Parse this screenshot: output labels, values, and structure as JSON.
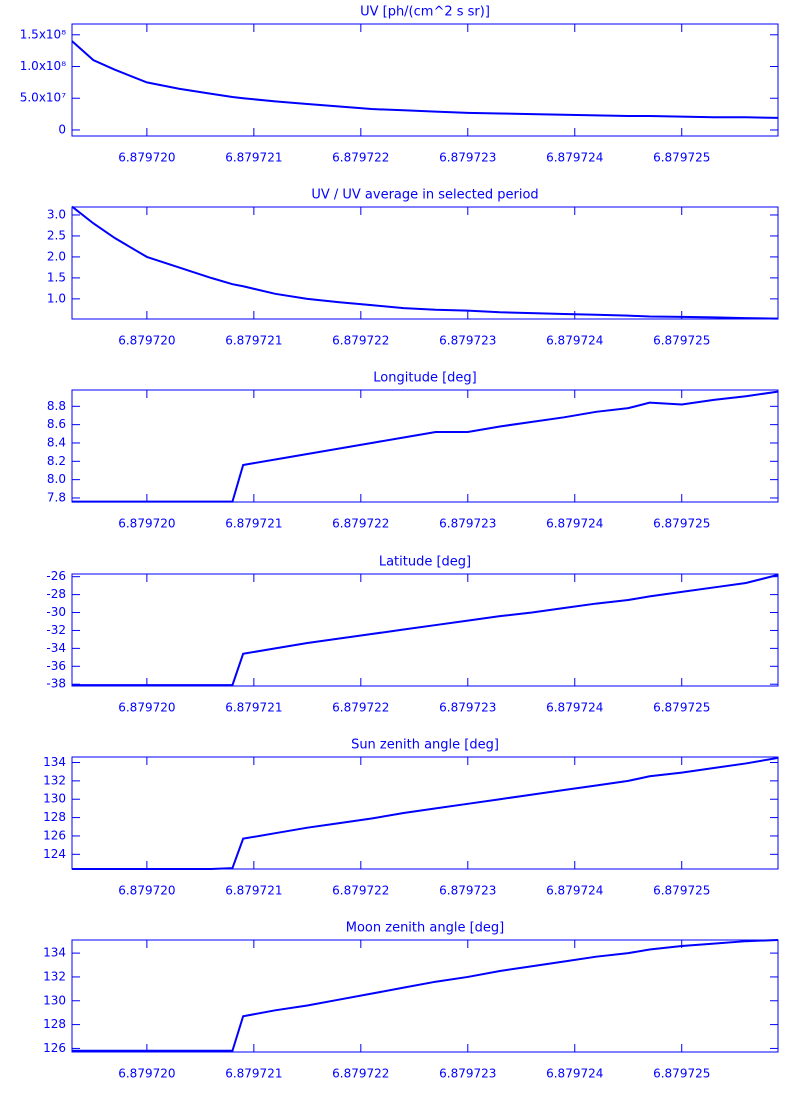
{
  "chart_data": [
    {
      "type": "line",
      "title": "UV [ph/(cm^2 s sr)]",
      "color": "#0000ff",
      "x": [
        6.8797193,
        6.8797195,
        6.8797197,
        6.87972,
        6.8797203,
        6.8797206,
        6.8797208,
        6.8797209,
        6.8797212,
        6.8797215,
        6.8797218,
        6.8797221,
        6.8797224,
        6.8797227,
        6.879723,
        6.8797233,
        6.8797236,
        6.8797239,
        6.8797242,
        6.8797245,
        6.8797247,
        6.879725,
        6.8797253,
        6.8797256,
        6.8797259
      ],
      "values": [
        140000000,
        110000000,
        95000000,
        75000000,
        65000000,
        57000000,
        52000000,
        50000000,
        45000000,
        41000000,
        37000000,
        33000000,
        31000000,
        29000000,
        27000000,
        26000000,
        25000000,
        24000000,
        23000000,
        22000000,
        22000000,
        21000000,
        20000000,
        20000000,
        19000000
      ],
      "xlim": [
        6.8797193,
        6.8797259
      ],
      "xticks": [
        {
          "value": 6.87972,
          "label": "6.879720"
        },
        6.879721,
        6.879722,
        6.879723,
        6.879724,
        6.879725
      ],
      "ylim": [
        -9500000,
        167000000
      ],
      "yticks": [
        0,
        {
          "value": 50000000,
          "label": "5.0x10⁷"
        },
        {
          "value": 100000000,
          "label": "1.0x10⁸"
        },
        {
          "value": 150000000,
          "label": "1.5x10⁸"
        }
      ]
    },
    {
      "type": "line",
      "title": "UV / UV average in selected period",
      "color": "#0000ff",
      "x": [
        6.8797193,
        6.8797195,
        6.8797197,
        6.87972,
        6.8797203,
        6.8797206,
        6.8797208,
        6.8797209,
        6.8797212,
        6.8797215,
        6.8797218,
        6.8797221,
        6.8797224,
        6.8797227,
        6.879723,
        6.8797233,
        6.8797236,
        6.8797239,
        6.8797242,
        6.8797245,
        6.8797247,
        6.879725,
        6.8797253,
        6.8797256,
        6.8797259
      ],
      "values": [
        3.2,
        2.8,
        2.45,
        2.0,
        1.75,
        1.5,
        1.35,
        1.3,
        1.12,
        1.0,
        0.92,
        0.85,
        0.78,
        0.74,
        0.72,
        0.68,
        0.66,
        0.64,
        0.62,
        0.6,
        0.58,
        0.57,
        0.56,
        0.54,
        0.53
      ],
      "xlim": [
        6.8797193,
        6.8797259
      ],
      "xticks": [
        {
          "value": 6.87972,
          "label": "6.879720"
        },
        6.879721,
        6.879722,
        6.879723,
        6.879724,
        6.879725
      ],
      "ylim": [
        0.52,
        3.19
      ],
      "yticks": [
        {
          "value": 1,
          "label": "1.0"
        },
        1.5,
        {
          "value": 2,
          "label": "2.0"
        },
        2.5,
        {
          "value": 3,
          "label": "3.0"
        }
      ]
    },
    {
      "type": "line",
      "title": "Longitude [deg]",
      "color": "#0000ff",
      "x": [
        6.8797193,
        6.8797195,
        6.8797197,
        6.87972,
        6.8797203,
        6.8797206,
        6.8797208,
        6.8797209,
        6.8797212,
        6.8797215,
        6.8797218,
        6.8797221,
        6.8797224,
        6.8797227,
        6.879723,
        6.8797233,
        6.8797236,
        6.8797239,
        6.8797242,
        6.8797245,
        6.8797247,
        6.879725,
        6.8797253,
        6.8797256,
        6.8797259
      ],
      "values": [
        7.76,
        7.76,
        7.76,
        7.76,
        7.76,
        7.76,
        7.76,
        8.16,
        8.22,
        8.28,
        8.34,
        8.4,
        8.46,
        8.52,
        8.52,
        8.58,
        8.63,
        8.68,
        8.74,
        8.78,
        8.84,
        8.82,
        8.87,
        8.91,
        8.96
      ],
      "xlim": [
        6.8797193,
        6.8797259
      ],
      "xticks": [
        {
          "value": 6.87972,
          "label": "6.879720"
        },
        6.879721,
        6.879722,
        6.879723,
        6.879724,
        6.879725
      ],
      "ylim": [
        7.756,
        8.978
      ],
      "yticks": [
        7.8,
        {
          "value": 8,
          "label": "8.0"
        },
        8.2,
        8.4,
        8.6,
        8.8
      ]
    },
    {
      "type": "line",
      "title": "Latitude [deg]",
      "color": "#0000ff",
      "x": [
        6.8797193,
        6.8797195,
        6.8797197,
        6.87972,
        6.8797203,
        6.8797206,
        6.8797208,
        6.8797209,
        6.8797212,
        6.8797215,
        6.8797218,
        6.8797221,
        6.8797224,
        6.8797227,
        6.879723,
        6.8797233,
        6.8797236,
        6.8797239,
        6.8797242,
        6.8797245,
        6.8797247,
        6.879725,
        6.8797253,
        6.8797256,
        6.8797259
      ],
      "values": [
        -38.1,
        -38.1,
        -38.1,
        -38.1,
        -38.1,
        -38.1,
        -38.1,
        -34.6,
        -34.0,
        -33.4,
        -32.9,
        -32.4,
        -31.9,
        -31.4,
        -30.9,
        -30.4,
        -30.0,
        -29.5,
        -29.0,
        -28.6,
        -28.2,
        -27.7,
        -27.2,
        -26.7,
        -25.8
      ],
      "xlim": [
        6.8797193,
        6.8797259
      ],
      "xticks": [
        {
          "value": 6.87972,
          "label": "6.879720"
        },
        6.879721,
        6.879722,
        6.879723,
        6.879724,
        6.879725
      ],
      "ylim": [
        -38.2,
        -25.7
      ],
      "yticks": [
        -38,
        -36,
        -34,
        -32,
        -30,
        -28,
        -26
      ]
    },
    {
      "type": "line",
      "title": "Sun zenith angle [deg]",
      "color": "#0000ff",
      "x": [
        6.8797193,
        6.8797195,
        6.8797197,
        6.87972,
        6.8797203,
        6.8797206,
        6.8797208,
        6.8797209,
        6.8797212,
        6.8797215,
        6.8797218,
        6.8797221,
        6.8797224,
        6.8797227,
        6.879723,
        6.8797233,
        6.8797236,
        6.8797239,
        6.8797242,
        6.8797245,
        6.8797247,
        6.879725,
        6.8797253,
        6.8797256,
        6.8797259
      ],
      "values": [
        122.4,
        122.4,
        122.4,
        122.4,
        122.4,
        122.4,
        122.5,
        125.7,
        126.3,
        126.9,
        127.4,
        127.9,
        128.5,
        129.0,
        129.5,
        130.0,
        130.5,
        131.0,
        131.5,
        132.0,
        132.5,
        132.9,
        133.4,
        133.9,
        134.5
      ],
      "xlim": [
        6.8797193,
        6.8797259
      ],
      "xticks": [
        {
          "value": 6.87972,
          "label": "6.879720"
        },
        6.879721,
        6.879722,
        6.879723,
        6.879724,
        6.879725
      ],
      "ylim": [
        122.4,
        134.6
      ],
      "yticks": [
        124,
        126,
        128,
        130,
        132,
        134
      ]
    },
    {
      "type": "line",
      "title": "Moon zenith angle [deg]",
      "color": "#0000ff",
      "x": [
        6.8797193,
        6.8797195,
        6.8797197,
        6.87972,
        6.8797203,
        6.8797206,
        6.8797208,
        6.8797209,
        6.8797212,
        6.8797215,
        6.8797218,
        6.8797221,
        6.8797224,
        6.8797227,
        6.879723,
        6.8797233,
        6.8797236,
        6.8797239,
        6.8797242,
        6.8797245,
        6.8797247,
        6.879725,
        6.8797253,
        6.8797256,
        6.8797259
      ],
      "values": [
        125.8,
        125.8,
        125.8,
        125.8,
        125.8,
        125.8,
        125.8,
        128.7,
        129.2,
        129.6,
        130.1,
        130.6,
        131.1,
        131.6,
        132.0,
        132.5,
        132.9,
        133.3,
        133.7,
        134.0,
        134.3,
        134.6,
        134.8,
        135.0,
        135.1
      ],
      "xlim": [
        6.8797193,
        6.8797259
      ],
      "xticks": [
        {
          "value": 6.87972,
          "label": "6.879720"
        },
        6.879721,
        6.879722,
        6.879723,
        6.879724,
        6.879725
      ],
      "ylim": [
        125.7,
        135.1
      ],
      "yticks": [
        126,
        128,
        130,
        132,
        134
      ]
    }
  ]
}
